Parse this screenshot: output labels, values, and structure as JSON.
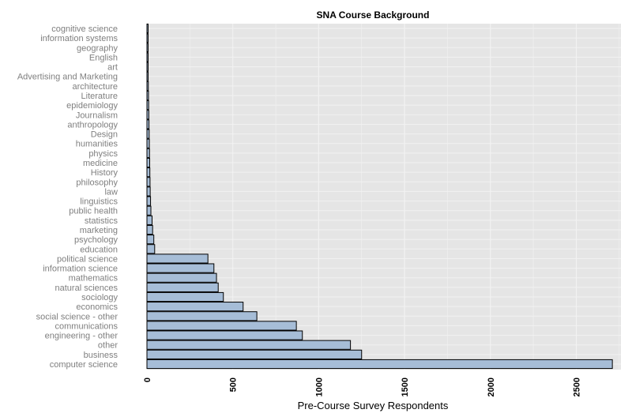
{
  "chart_data": {
    "type": "bar",
    "orientation": "horizontal",
    "title": "SNA Course Background",
    "xlabel": "Pre-Course Survey Respondents",
    "ylabel": "",
    "xlim": [
      0,
      2760
    ],
    "xticks": [
      0,
      500,
      1000,
      1500,
      2000,
      2500
    ],
    "grid": true,
    "categories": [
      "cognitive science",
      "information systems",
      "geography",
      "English",
      "art",
      "Advertising and Marketing",
      "architecture",
      "Literature",
      "epidemiology",
      "Journalism",
      "anthropology",
      "Design",
      "humanities",
      "physics",
      "medicine",
      "History",
      "philosophy",
      "law",
      "linguistics",
      "public health",
      "statistics",
      "marketing",
      "psychology",
      "education",
      "political science",
      "information science",
      "mathematics",
      "natural sciences",
      "sociology",
      "economics",
      "social science - other",
      "communications",
      "engineering - other",
      "other",
      "business",
      "computer science"
    ],
    "values": [
      2,
      3,
      4,
      5,
      6,
      7,
      8,
      9,
      10,
      11,
      12,
      13,
      14,
      15,
      16,
      17,
      18,
      19,
      21,
      23,
      30,
      33,
      40,
      45,
      355,
      390,
      405,
      415,
      445,
      560,
      640,
      870,
      905,
      1185,
      1250,
      2710
    ],
    "colors": {
      "bar_fill": "#a6bdd7",
      "bar_stroke": "#000000",
      "panel_bg": "#e5e5e5",
      "grid": "#f2f2f2"
    }
  }
}
